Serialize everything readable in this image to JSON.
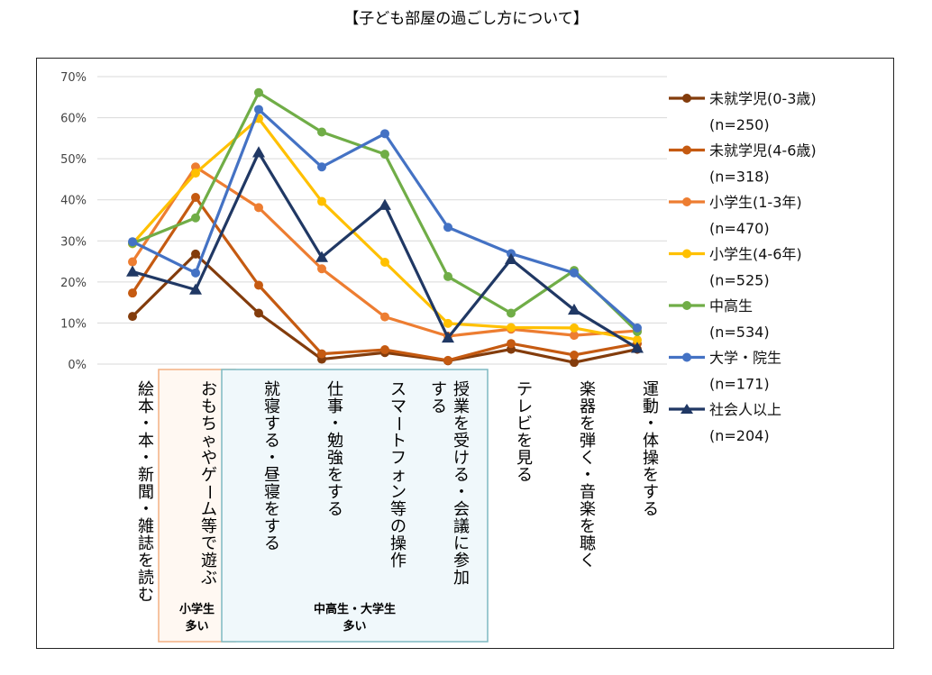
{
  "title": "【子ども部屋の過ごし方について】",
  "chart_data": {
    "type": "line",
    "categories": [
      "絵本・本・新聞・雑誌を読む",
      "おもちゃやゲーム等で遊ぶ",
      "就寝する・昼寝をする",
      "仕事・勉強をする",
      "スマートフォン等の操作",
      "授業を受ける・会議に参加する",
      "テレビを見る",
      "楽器を弾く・音楽を聴く",
      "運動・体操をする"
    ],
    "y_ticks": [
      "0%",
      "10%",
      "20%",
      "30%",
      "40%",
      "50%",
      "60%",
      "70%"
    ],
    "ylim": [
      0,
      70
    ],
    "grid": "horizontal",
    "legend_position": "right",
    "series": [
      {
        "name": "未就学児(0-3歳)",
        "n": "(n=250)",
        "color": "#833C0C",
        "marker": "circle",
        "values": [
          11.6,
          26.8,
          12.4,
          1.2,
          2.8,
          0.8,
          3.6,
          0.4,
          3.6
        ]
      },
      {
        "name": "未就学児(4-6歳)",
        "n": "(n=318)",
        "color": "#C55A11",
        "marker": "circle",
        "values": [
          17.3,
          40.6,
          19.2,
          2.5,
          3.5,
          0.9,
          5.0,
          2.2,
          5.0
        ]
      },
      {
        "name": "小学生(1-3年)",
        "n": "(n=470)",
        "color": "#ED7D31",
        "marker": "circle",
        "values": [
          24.9,
          48.0,
          38.1,
          23.2,
          11.5,
          6.8,
          8.5,
          7.0,
          8.1
        ]
      },
      {
        "name": "小学生(4-6年)",
        "n": "(n=525)",
        "color": "#FFC000",
        "marker": "circle",
        "values": [
          29.3,
          46.5,
          59.8,
          39.6,
          24.8,
          9.9,
          8.9,
          8.8,
          5.9
        ]
      },
      {
        "name": "中高生",
        "n": "(n=534)",
        "color": "#70AD47",
        "marker": "circle",
        "values": [
          29.4,
          35.6,
          66.1,
          56.5,
          51.1,
          21.3,
          12.4,
          22.8,
          7.9
        ]
      },
      {
        "name": "大学・院生",
        "n": "(n=171)",
        "color": "#4472C4",
        "marker": "circle",
        "values": [
          29.8,
          22.2,
          62.0,
          48.0,
          56.1,
          33.3,
          26.9,
          22.2,
          8.8
        ]
      },
      {
        "name": "社会人以上",
        "n": "(n=204)",
        "color": "#203864",
        "marker": "triangle",
        "values": [
          22.5,
          18.1,
          51.5,
          26.0,
          38.7,
          6.4,
          25.5,
          13.2,
          3.9
        ]
      }
    ],
    "annotations": [
      {
        "text": [
          "小学生",
          "多い"
        ],
        "border_color": "#F4B183",
        "fill": "#FFF8F2",
        "covers": [
          1
        ]
      },
      {
        "text": [
          "中高生・大学生",
          "多い"
        ],
        "border_color": "#7FB9C2",
        "fill": "#F0F8FB",
        "covers": [
          2,
          3,
          4,
          5
        ]
      }
    ]
  }
}
